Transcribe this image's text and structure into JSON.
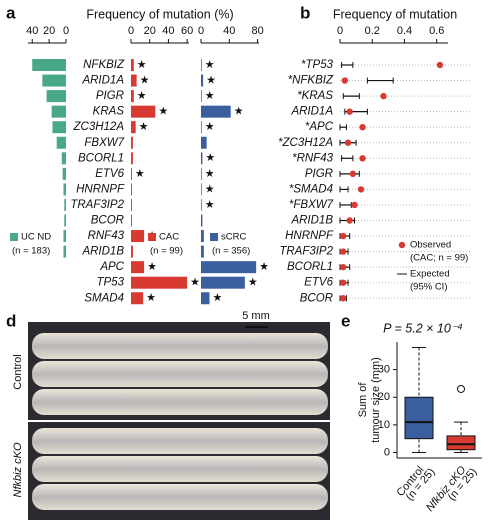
{
  "panel_labels": [
    "a",
    "b",
    "d",
    "e"
  ],
  "photo": {
    "scale_bar": "5 mm",
    "rows": [
      "Control",
      "Nfkbiz cKO"
    ]
  },
  "chart_data": [
    {
      "type": "bar",
      "title": "Frequency of mutation (%)",
      "star_label": "★",
      "categories": [
        "NFKBIZ",
        "ARID1A",
        "PIGR",
        "KRAS",
        "ZC3H12A",
        "FBXW7",
        "BCORL1",
        "ETV6",
        "HNRNPF",
        "TRAF3IP2",
        "BCOR",
        "RNF43",
        "ARID1B",
        "APC",
        "TP53",
        "SMAD4"
      ],
      "series": [
        {
          "name": "UC ND",
          "n_label": "(n = 183)",
          "color": "#4aa88a",
          "reversed": true,
          "xlim": [
            0,
            45
          ],
          "xticks": [
            0,
            20,
            40
          ],
          "values": [
            40,
            28,
            23,
            17,
            16,
            11,
            5,
            4,
            3,
            2,
            2,
            3,
            3,
            0,
            0,
            0
          ],
          "stars": [
            false,
            false,
            false,
            false,
            false,
            false,
            false,
            false,
            false,
            false,
            false,
            false,
            false,
            false,
            false,
            false
          ]
        },
        {
          "name": "CAC",
          "n_label": "(n = 99)",
          "color": "#d83a32",
          "reversed": false,
          "xlim": [
            0,
            62
          ],
          "xticks": [
            0,
            20,
            40,
            60
          ],
          "values": [
            3,
            6,
            3,
            26,
            5,
            2,
            2,
            1,
            1,
            1,
            1,
            14,
            2,
            14,
            60,
            13
          ],
          "stars": [
            true,
            true,
            true,
            true,
            true,
            false,
            false,
            true,
            false,
            false,
            false,
            true,
            false,
            true,
            true,
            true
          ]
        },
        {
          "name": "sCRC",
          "n_label": "(n = 356)",
          "color": "#3b5e9e",
          "reversed": false,
          "xlim": [
            0,
            82
          ],
          "xticks": [
            0,
            40,
            80
          ],
          "values": [
            1,
            3,
            1,
            42,
            1,
            8,
            2,
            1,
            1,
            1,
            2,
            4,
            4,
            78,
            62,
            12
          ],
          "stars": [
            true,
            true,
            true,
            true,
            true,
            false,
            true,
            true,
            true,
            true,
            false,
            false,
            false,
            true,
            true,
            true
          ]
        }
      ]
    },
    {
      "type": "interval",
      "title": "Frequency of mutation",
      "categories": [
        "*TP53",
        "*NFKBIZ",
        "*KRAS",
        "ARID1A",
        "*APC",
        "*ZC3H12A",
        "*RNF43",
        "PIGR",
        "*SMAD4",
        "*FBXW7",
        "ARID1B",
        "HNRNPF",
        "TRAF3IP2",
        "BCORL1",
        "ETV6",
        "BCOR"
      ],
      "xlim": [
        0,
        0.67
      ],
      "xticks": [
        0,
        0.2,
        0.4,
        0.6
      ],
      "observed_name": "Observed",
      "observed_note": "(CAC; n = 99)",
      "observed_color": "#d83a32",
      "expected_name": "Expected",
      "expected_note": "(95% CI)",
      "observed": [
        0.62,
        0.03,
        0.27,
        0.06,
        0.14,
        0.05,
        0.14,
        0.08,
        0.13,
        0.09,
        0.06,
        0.02,
        0.02,
        0.02,
        0.02,
        0.02
      ],
      "expected_low": [
        0.01,
        0.17,
        0.02,
        0.03,
        0.0,
        0.0,
        0.01,
        0.0,
        0.0,
        0.0,
        0.0,
        0.0,
        0.0,
        0.0,
        0.0,
        0.0
      ],
      "expected_high": [
        0.08,
        0.33,
        0.12,
        0.17,
        0.04,
        0.1,
        0.08,
        0.12,
        0.05,
        0.07,
        0.09,
        0.06,
        0.05,
        0.06,
        0.05,
        0.04
      ]
    },
    {
      "type": "box",
      "title": "P = 5.2 × 10⁻⁴",
      "ylabel": [
        "Sum of",
        "tumour size (mm)"
      ],
      "ylim": [
        -2,
        40
      ],
      "yticks": [
        0,
        10,
        20,
        30
      ],
      "categories": [
        "Control",
        "Nfkbiz cKO"
      ],
      "n_labels": [
        "(n = 25)",
        "(n = 25)"
      ],
      "series": [
        {
          "color": "#3b5e9e",
          "whisker_low": 0,
          "q1": 5,
          "median": 11,
          "q3": 20,
          "whisker_high": 38,
          "outliers": []
        },
        {
          "color": "#d83a32",
          "whisker_low": 0,
          "q1": 1,
          "median": 3,
          "q3": 6,
          "whisker_high": 11,
          "outliers": [
            23
          ]
        }
      ]
    }
  ]
}
